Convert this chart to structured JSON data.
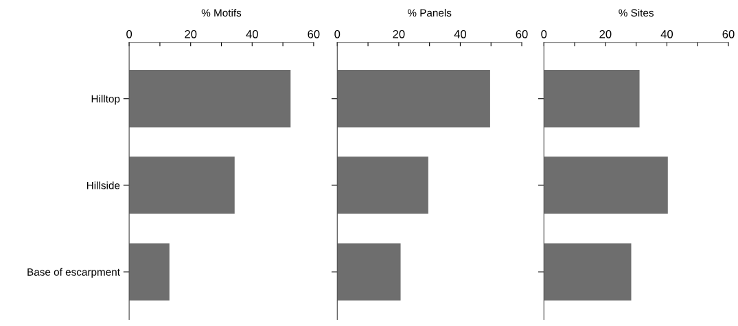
{
  "chart_data": [
    {
      "type": "bar",
      "orientation": "horizontal",
      "xlabel": "% Motifs",
      "categories": [
        "Hilltop",
        "Hillside",
        "Base of escarpment"
      ],
      "values": [
        52.5,
        34.3,
        13.1
      ],
      "color": "#6e6e6e",
      "xlim": [
        0,
        60
      ],
      "xticks": [
        0,
        {
          "value": 10,
          "label": null
        },
        20,
        {
          "value": 30,
          "label": null
        },
        40,
        {
          "value": 50,
          "label": null
        },
        60
      ],
      "grid": false
    },
    {
      "type": "bar",
      "orientation": "horizontal",
      "xlabel": "% Panels",
      "categories": [
        null,
        null,
        null
      ],
      "values": [
        49.7,
        29.6,
        20.6
      ],
      "color": "#6e6e6e",
      "xlim": [
        0,
        60
      ],
      "xticks": [
        0,
        {
          "value": 10,
          "label": null
        },
        20,
        {
          "value": 30,
          "label": null
        },
        40,
        {
          "value": 50,
          "label": null
        },
        60
      ],
      "grid": false,
      "tick_labels": "x"
    },
    {
      "type": "bar",
      "orientation": "horizontal",
      "xlabel": "% Sites",
      "categories": [
        null,
        null,
        null
      ],
      "values": [
        31.1,
        40.3,
        28.4
      ],
      "color": "#6e6e6e",
      "xlim": [
        0,
        60
      ],
      "xticks": [
        0,
        {
          "value": 10,
          "label": null
        },
        20,
        {
          "value": 30,
          "label": null
        },
        40,
        {
          "value": 50,
          "label": null
        },
        60
      ],
      "grid": false,
      "tick_labels": "x"
    }
  ]
}
